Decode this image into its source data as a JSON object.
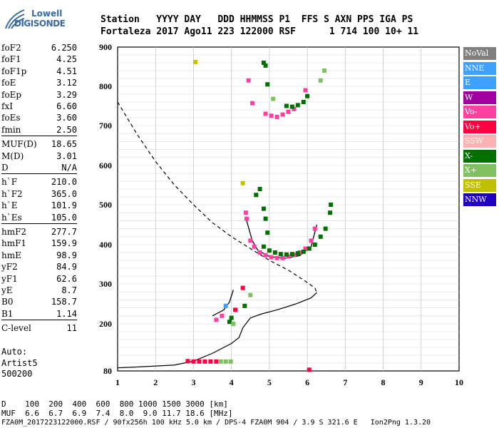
{
  "logo": {
    "line1": "Lowell",
    "line2": "DIGISONDE"
  },
  "header": {
    "labels": "Station   YYYY DAY   DDD HHMMSS P1  FFS S AXN PPS IGA PS",
    "values": "Fortaleza 2017 Ago11 223 122000 RSF      1 714 100 10+ 11"
  },
  "params": [
    {
      "k": "foF2",
      "v": "6.250"
    },
    {
      "k": "foF1",
      "v": "4.25"
    },
    {
      "k": "foF1p",
      "v": "4.51"
    },
    {
      "k": "foE",
      "v": "3.12"
    },
    {
      "k": "foEp",
      "v": "3.29"
    },
    {
      "k": "fxI",
      "v": "6.60"
    },
    {
      "k": "foEs",
      "v": "3.60"
    },
    {
      "k": "fmin",
      "v": "2.50"
    },
    {
      "k": "MUF(D)",
      "v": "18.65"
    },
    {
      "k": "M(D)",
      "v": "3.01"
    },
    {
      "k": "D",
      "v": "N/A"
    },
    {
      "k": "h`F",
      "v": "210.0"
    },
    {
      "k": "h`F2",
      "v": "365.0"
    },
    {
      "k": "h`E",
      "v": "101.9"
    },
    {
      "k": "h`Es",
      "v": "105.0"
    },
    {
      "k": "hmF2",
      "v": "277.7"
    },
    {
      "k": "hmF1",
      "v": "159.9"
    },
    {
      "k": "hmE",
      "v": "98.9"
    },
    {
      "k": "yF2",
      "v": "84.9"
    },
    {
      "k": "yF1",
      "v": "62.6"
    },
    {
      "k": "yE",
      "v": "8.7"
    },
    {
      "k": "B0",
      "v": "158.7"
    },
    {
      "k": "B1",
      "v": "1.14"
    },
    {
      "k": "C-level",
      "v": "11"
    }
  ],
  "auto": {
    "l1": "Auto:",
    "l2": "Artist5",
    "l3": "500200"
  },
  "legend": [
    {
      "label": "NoVal",
      "color": "#808080"
    },
    {
      "label": "NNE",
      "color": "#40a0ff"
    },
    {
      "label": "E",
      "color": "#40a0ff"
    },
    {
      "label": "W",
      "color": "#a000a0"
    },
    {
      "label": "Vo-",
      "color": "#ff40a0"
    },
    {
      "label": "Vo+",
      "color": "#ff0040"
    },
    {
      "label": "SSW",
      "color": "#ffb0b0"
    },
    {
      "label": "X-",
      "color": "#007000"
    },
    {
      "label": "X+",
      "color": "#80c060"
    },
    {
      "label": "SSE",
      "color": "#c0c000"
    },
    {
      "label": "NNW",
      "color": "#2000c0"
    }
  ],
  "footer": {
    "row1": "D    100  200  400  600  800 1000 1500 3000 [km]",
    "row2": "MUF  6.6  6.7  6.9  7.4  8.0  9.0 11.7 18.6 [MHz]",
    "row3": "FZA0M_2017223122000.RSF / 90fx256h 100 kHz 5.0 km / DPS-4 FZA0M 904 / 3.9 S 321.6 E   Ion2Png 1.3.20"
  },
  "chart_data": {
    "type": "scatter",
    "xlim": [
      1,
      10
    ],
    "ylim": [
      80,
      900
    ],
    "xticks": [
      "1",
      "2",
      "3",
      "4",
      "5",
      "6",
      "7",
      "8",
      "9",
      "10"
    ],
    "yticks": [
      "80",
      "200",
      "300",
      "400",
      "500",
      "600",
      "700",
      "800",
      "900"
    ],
    "grid": true,
    "profile_dashed": [
      [
        1.0,
        760
      ],
      [
        1.5,
        680
      ],
      [
        2.0,
        610
      ],
      [
        2.5,
        550
      ],
      [
        3.0,
        500
      ],
      [
        3.5,
        455
      ],
      [
        4.0,
        420
      ],
      [
        4.5,
        390
      ],
      [
        5.0,
        360
      ],
      [
        5.5,
        335
      ],
      [
        5.9,
        310
      ],
      [
        6.2,
        290
      ],
      [
        6.25,
        278
      ]
    ],
    "profile_solid": [
      [
        6.25,
        278
      ],
      [
        6.1,
        265
      ],
      [
        5.7,
        250
      ],
      [
        5.2,
        235
      ],
      [
        4.8,
        225
      ],
      [
        4.5,
        215
      ],
      [
        4.3,
        190
      ],
      [
        4.2,
        165
      ],
      [
        4.0,
        150
      ],
      [
        3.5,
        125
      ],
      [
        3.0,
        105
      ],
      [
        2.5,
        95
      ],
      [
        1.5,
        90
      ],
      [
        1.0,
        88
      ]
    ],
    "trace_f2": [
      [
        4.4,
        460
      ],
      [
        4.55,
        410
      ],
      [
        4.7,
        385
      ],
      [
        5.0,
        370
      ],
      [
        5.4,
        365
      ],
      [
        5.8,
        372
      ],
      [
        6.1,
        395
      ],
      [
        6.25,
        450
      ]
    ],
    "trace_e": [
      [
        3.5,
        220
      ],
      [
        3.8,
        235
      ],
      [
        3.95,
        255
      ],
      [
        4.05,
        285
      ]
    ],
    "points": [
      {
        "x": 3.05,
        "y": 862,
        "c": "SSE"
      },
      {
        "x": 4.85,
        "y": 860,
        "c": "X-"
      },
      {
        "x": 4.9,
        "y": 853,
        "c": "X-"
      },
      {
        "x": 4.45,
        "y": 815,
        "c": "Vo-"
      },
      {
        "x": 4.95,
        "y": 805,
        "c": "X-"
      },
      {
        "x": 4.55,
        "y": 757,
        "c": "Vo-"
      },
      {
        "x": 4.9,
        "y": 730,
        "c": "Vo-"
      },
      {
        "x": 5.05,
        "y": 725,
        "c": "Vo-"
      },
      {
        "x": 5.2,
        "y": 722,
        "c": "Vo-"
      },
      {
        "x": 5.35,
        "y": 728,
        "c": "Vo-"
      },
      {
        "x": 5.5,
        "y": 735,
        "c": "Vo-"
      },
      {
        "x": 5.65,
        "y": 742,
        "c": "Vo-"
      },
      {
        "x": 5.45,
        "y": 750,
        "c": "X-"
      },
      {
        "x": 5.6,
        "y": 748,
        "c": "X-"
      },
      {
        "x": 5.75,
        "y": 752,
        "c": "X-"
      },
      {
        "x": 5.9,
        "y": 760,
        "c": "X-"
      },
      {
        "x": 6.0,
        "y": 775,
        "c": "X-"
      },
      {
        "x": 5.95,
        "y": 790,
        "c": "Vo-"
      },
      {
        "x": 6.35,
        "y": 815,
        "c": "X+"
      },
      {
        "x": 6.45,
        "y": 840,
        "c": "X+"
      },
      {
        "x": 5.1,
        "y": 768,
        "c": "X+"
      },
      {
        "x": 4.3,
        "y": 555,
        "c": "SSE"
      },
      {
        "x": 4.75,
        "y": 540,
        "c": "X-"
      },
      {
        "x": 4.65,
        "y": 525,
        "c": "X-"
      },
      {
        "x": 4.85,
        "y": 490,
        "c": "X-"
      },
      {
        "x": 4.9,
        "y": 465,
        "c": "X-"
      },
      {
        "x": 4.95,
        "y": 430,
        "c": "X-"
      },
      {
        "x": 4.38,
        "y": 480,
        "c": "Vo-"
      },
      {
        "x": 4.4,
        "y": 465,
        "c": "Vo-"
      },
      {
        "x": 4.5,
        "y": 410,
        "c": "Vo-"
      },
      {
        "x": 4.6,
        "y": 395,
        "c": "Vo-"
      },
      {
        "x": 4.75,
        "y": 380,
        "c": "Vo-"
      },
      {
        "x": 4.9,
        "y": 373,
        "c": "Vo-"
      },
      {
        "x": 5.05,
        "y": 368,
        "c": "Vo-"
      },
      {
        "x": 5.2,
        "y": 366,
        "c": "Vo-"
      },
      {
        "x": 5.35,
        "y": 366,
        "c": "Vo-"
      },
      {
        "x": 5.5,
        "y": 370,
        "c": "Vo-"
      },
      {
        "x": 5.65,
        "y": 374,
        "c": "Vo-"
      },
      {
        "x": 5.8,
        "y": 380,
        "c": "Vo-"
      },
      {
        "x": 5.95,
        "y": 390,
        "c": "Vo-"
      },
      {
        "x": 6.1,
        "y": 410,
        "c": "Vo-"
      },
      {
        "x": 6.2,
        "y": 440,
        "c": "Vo-"
      },
      {
        "x": 4.85,
        "y": 395,
        "c": "X-"
      },
      {
        "x": 5.0,
        "y": 385,
        "c": "X-"
      },
      {
        "x": 5.15,
        "y": 380,
        "c": "X-"
      },
      {
        "x": 5.3,
        "y": 376,
        "c": "X-"
      },
      {
        "x": 5.45,
        "y": 375,
        "c": "X-"
      },
      {
        "x": 5.6,
        "y": 376,
        "c": "X-"
      },
      {
        "x": 5.75,
        "y": 378,
        "c": "X-"
      },
      {
        "x": 5.9,
        "y": 382,
        "c": "X-"
      },
      {
        "x": 6.05,
        "y": 390,
        "c": "X-"
      },
      {
        "x": 6.2,
        "y": 400,
        "c": "X-"
      },
      {
        "x": 6.35,
        "y": 420,
        "c": "X-"
      },
      {
        "x": 6.48,
        "y": 440,
        "c": "X-"
      },
      {
        "x": 6.6,
        "y": 480,
        "c": "X-"
      },
      {
        "x": 6.62,
        "y": 500,
        "c": "X-"
      },
      {
        "x": 4.3,
        "y": 290,
        "c": "Vo+"
      },
      {
        "x": 4.5,
        "y": 272,
        "c": "X+"
      },
      {
        "x": 4.35,
        "y": 245,
        "c": "X-"
      },
      {
        "x": 4.1,
        "y": 235,
        "c": "Vo+"
      },
      {
        "x": 3.85,
        "y": 245,
        "c": "NNE"
      },
      {
        "x": 3.75,
        "y": 220,
        "c": "Vo-"
      },
      {
        "x": 3.6,
        "y": 210,
        "c": "Vo-"
      },
      {
        "x": 4.0,
        "y": 215,
        "c": "X-"
      },
      {
        "x": 3.95,
        "y": 205,
        "c": "X-"
      },
      {
        "x": 4.05,
        "y": 200,
        "c": "X+"
      },
      {
        "x": 2.85,
        "y": 105,
        "c": "Vo+"
      },
      {
        "x": 3.0,
        "y": 104,
        "c": "Vo+"
      },
      {
        "x": 3.15,
        "y": 104,
        "c": "Vo+"
      },
      {
        "x": 3.3,
        "y": 104,
        "c": "Vo+"
      },
      {
        "x": 3.45,
        "y": 104,
        "c": "Vo+"
      },
      {
        "x": 3.6,
        "y": 104,
        "c": "Vo+"
      },
      {
        "x": 3.72,
        "y": 104,
        "c": "X+"
      },
      {
        "x": 3.85,
        "y": 104,
        "c": "X+"
      },
      {
        "x": 3.98,
        "y": 104,
        "c": "X+"
      },
      {
        "x": 6.05,
        "y": 83,
        "c": "Vo+"
      }
    ]
  }
}
